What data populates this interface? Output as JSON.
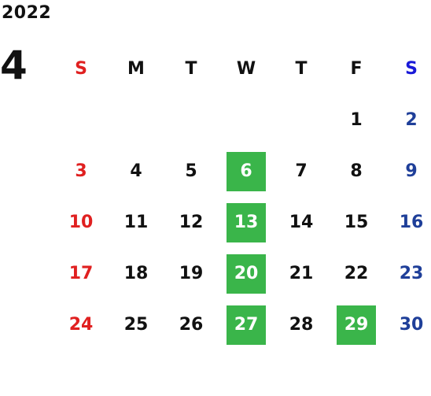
{
  "calendar": {
    "year": "2022",
    "month": "4",
    "weekdays": [
      "S",
      "M",
      "T",
      "W",
      "T",
      "F",
      "S"
    ],
    "weeks": [
      [
        "",
        "",
        "",
        "",
        "",
        "1",
        "2"
      ],
      [
        "3",
        "4",
        "5",
        "6",
        "7",
        "8",
        "9"
      ],
      [
        "10",
        "11",
        "12",
        "13",
        "14",
        "15",
        "16"
      ],
      [
        "17",
        "18",
        "19",
        "20",
        "21",
        "22",
        "23"
      ],
      [
        "24",
        "25",
        "26",
        "27",
        "28",
        "29",
        "30"
      ]
    ],
    "highlighted_days": [
      "6",
      "13",
      "20",
      "27",
      "29"
    ],
    "colors": {
      "sunday": "#e02020",
      "saturday_header": "#1a1ad8",
      "saturday": "#1f3f99",
      "highlight": "#3ab54a",
      "text": "#111111"
    }
  }
}
